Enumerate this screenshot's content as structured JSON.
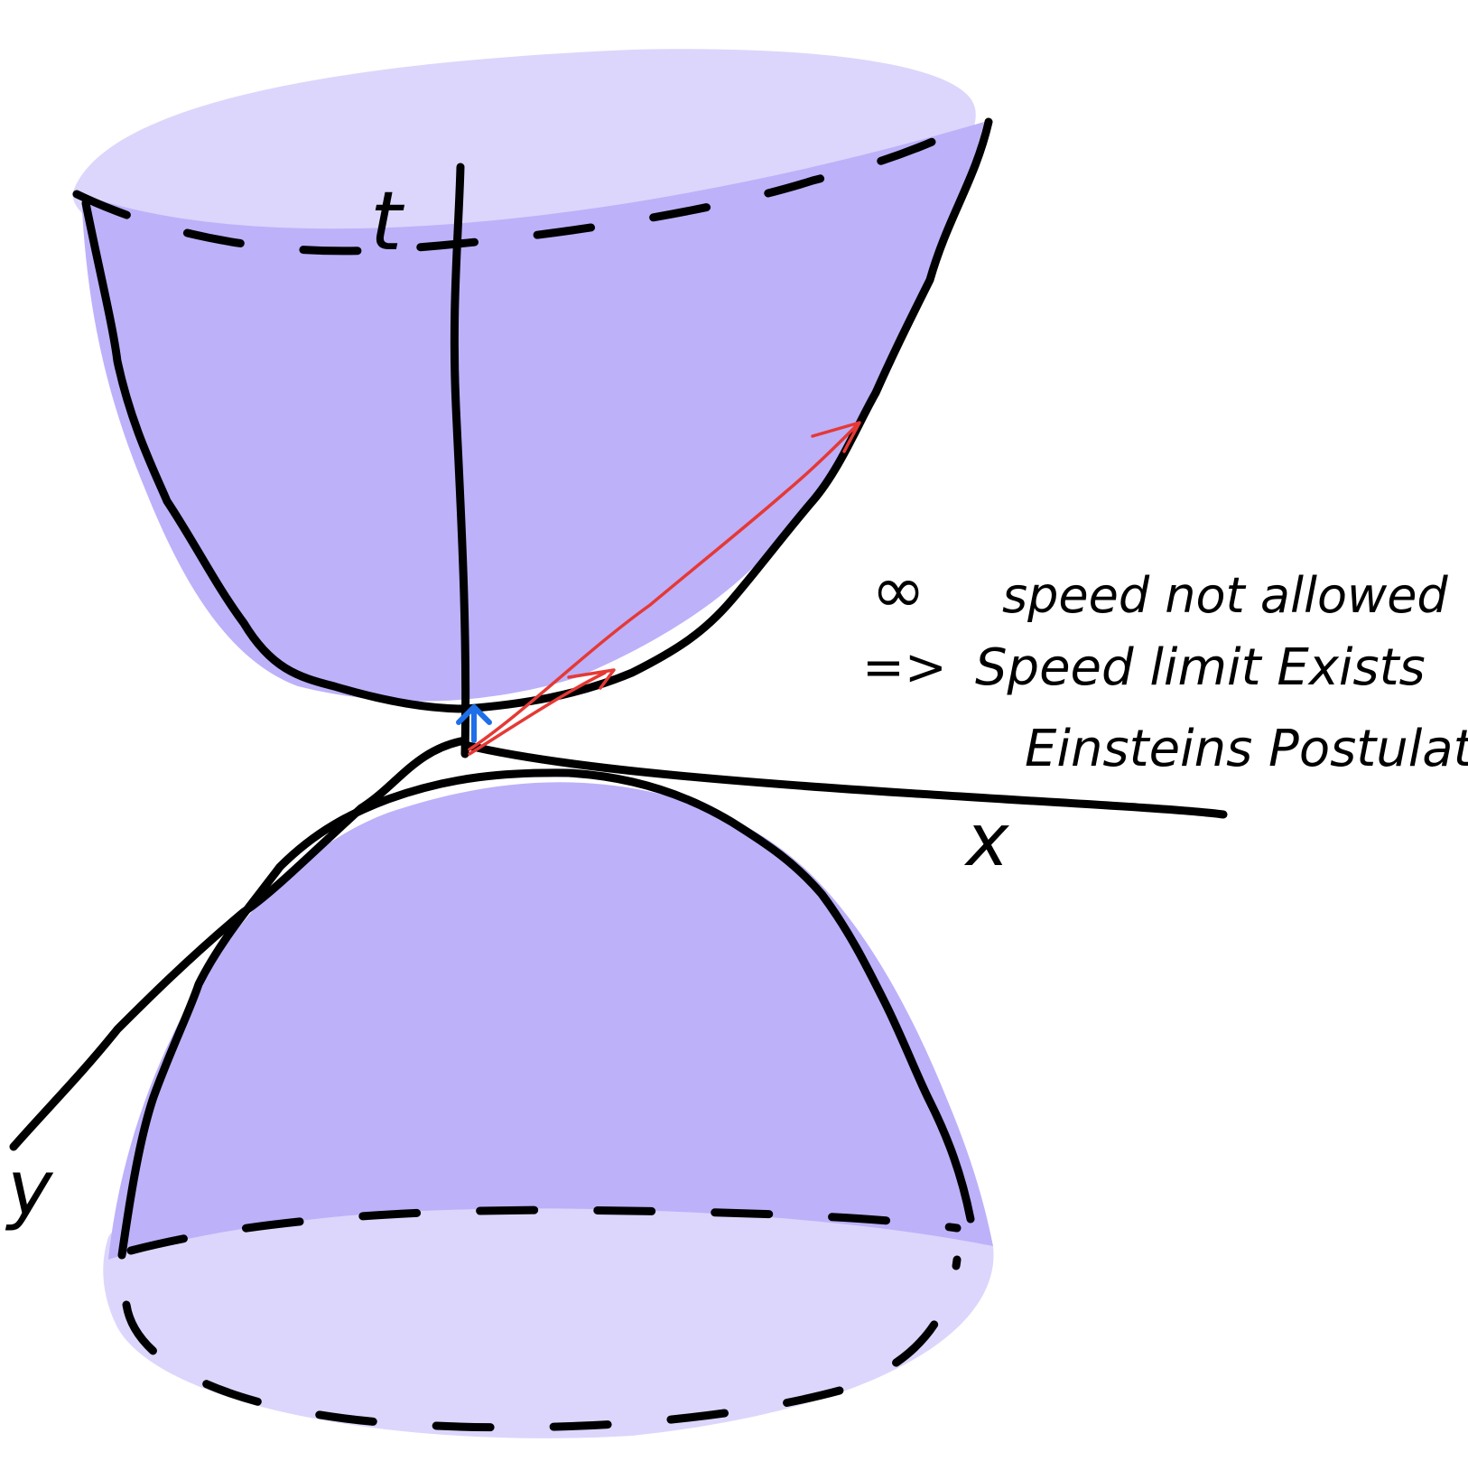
{
  "colors": {
    "cone_fill": "#BDB1FA",
    "cap_fill": "#DCD6FC",
    "ink": "#000000",
    "worldline_red": "#E53935",
    "arrow_blue": "#1E6FE8"
  },
  "axes": {
    "t_label": "t",
    "x_label": "x",
    "y_label": "y"
  },
  "notes": {
    "line1_symbol": "∞",
    "line1_text": "speed not allowed",
    "line2_arrow": "=>",
    "line2_text": "Speed limit Exists",
    "line3_text": "Einsteins Postulate"
  }
}
